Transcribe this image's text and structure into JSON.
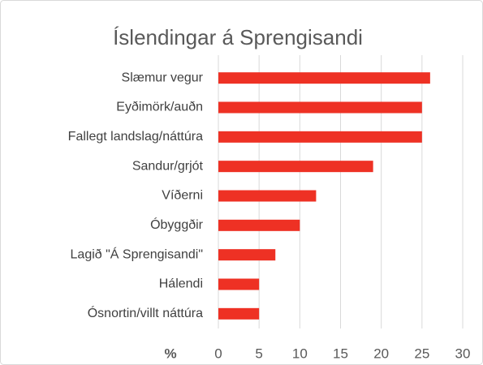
{
  "chart_data": {
    "type": "hbar",
    "title": "Íslendingar á Sprengisandi",
    "x_label": "%",
    "categories": [
      "Slæmur vegur",
      "Eyðimörk/auðn",
      "Fallegt landslag/náttúra",
      "Sandur/grjót",
      "Víðerni",
      "Óbyggðir",
      "Lagið \"Á Sprengisandi\"",
      "Hálendi",
      "Ósnortin/villt náttúra"
    ],
    "values": [
      26,
      25,
      25,
      19,
      12,
      10,
      7,
      5,
      5
    ],
    "color": "#ee3124",
    "xlim": [
      0,
      30
    ],
    "xticks": [
      0,
      5,
      10,
      15,
      20,
      25,
      30
    ],
    "grid": true
  }
}
